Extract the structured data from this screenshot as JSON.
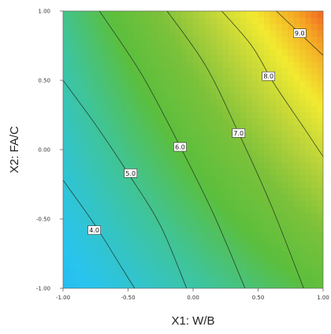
{
  "chart_data": {
    "type": "heatmap",
    "subtype": "contour",
    "title": "",
    "xlabel": "X1: W/B",
    "ylabel": "X2: FA/C",
    "xlim": [
      -1.0,
      1.0
    ],
    "ylim": [
      -1.0,
      1.0
    ],
    "x_ticks": [
      "-1.00",
      "-0.50",
      "0.00",
      "0.50",
      "1.00"
    ],
    "y_ticks": [
      "1.00",
      "0.50",
      "0.00",
      "-0.50",
      "-1.00"
    ],
    "grid": false,
    "legend": "none",
    "colormap": [
      "#1f3fae",
      "#1e88e0",
      "#29c4ef",
      "#3fc49a",
      "#5bbf3d",
      "#7cc13a",
      "#b9d33a",
      "#f2ea30",
      "#f5a623",
      "#ee4524"
    ],
    "color_range": [
      3.4,
      9.6
    ],
    "contours": [
      {
        "level": 4.0,
        "label": "4.0",
        "points": [
          [
            -1.0,
            -0.22
          ],
          [
            -0.75,
            -0.55
          ],
          [
            -0.55,
            -0.85
          ],
          [
            -0.45,
            -1.0
          ]
        ],
        "label_at": [
          -0.76,
          -0.58
        ]
      },
      {
        "level": 5.0,
        "label": "5.0",
        "points": [
          [
            -1.0,
            0.5
          ],
          [
            -0.75,
            0.18
          ],
          [
            -0.5,
            -0.17
          ],
          [
            -0.25,
            -0.55
          ],
          [
            -0.05,
            -1.0
          ]
        ],
        "label_at": [
          -0.48,
          -0.17
        ]
      },
      {
        "level": 6.0,
        "label": "6.0",
        "points": [
          [
            -0.72,
            1.0
          ],
          [
            -0.4,
            0.55
          ],
          [
            -0.12,
            0.06
          ],
          [
            0.15,
            -0.45
          ],
          [
            0.4,
            -1.0
          ]
        ],
        "label_at": [
          -0.1,
          0.02
        ]
      },
      {
        "level": 7.0,
        "label": "7.0",
        "points": [
          [
            -0.2,
            1.0
          ],
          [
            0.1,
            0.6
          ],
          [
            0.35,
            0.12
          ],
          [
            0.6,
            -0.4
          ],
          [
            0.85,
            -1.0
          ]
        ],
        "label_at": [
          0.35,
          0.12
        ]
      },
      {
        "level": 8.0,
        "label": "8.0",
        "points": [
          [
            0.22,
            1.0
          ],
          [
            0.45,
            0.75
          ],
          [
            0.62,
            0.48
          ],
          [
            0.85,
            0.16
          ],
          [
            1.0,
            -0.05
          ]
        ],
        "label_at": [
          0.58,
          0.53
        ]
      },
      {
        "level": 9.0,
        "label": "9.0",
        "points": [
          [
            0.64,
            1.0
          ],
          [
            0.82,
            0.84
          ],
          [
            1.0,
            0.68
          ]
        ],
        "label_at": [
          0.82,
          0.84
        ]
      }
    ]
  }
}
